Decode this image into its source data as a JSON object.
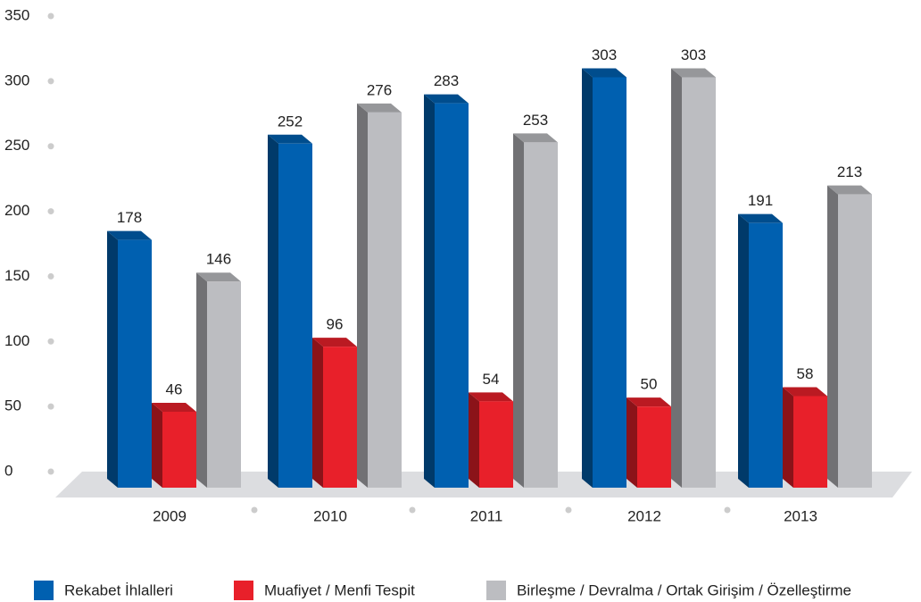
{
  "chart_data": {
    "type": "bar",
    "categories": [
      "2009",
      "2010",
      "2011",
      "2012",
      "2013"
    ],
    "series": [
      {
        "name": "Rekabet İhlalleri",
        "color": "#0060b0",
        "values": [
          178,
          252,
          283,
          303,
          191
        ]
      },
      {
        "name": "Muafiyet / Menfi Tespit",
        "color": "#e8202a",
        "values": [
          46,
          96,
          54,
          50,
          58
        ]
      },
      {
        "name": "Birleşme / Devralma / Ortak Girişim / Özelleştirme",
        "color": "#bcbdc1",
        "values": [
          146,
          276,
          253,
          303,
          213
        ]
      }
    ],
    "ylim": [
      0,
      350
    ],
    "yticks": [
      0,
      50,
      100,
      150,
      200,
      250,
      300,
      350
    ],
    "legend": "bottom"
  }
}
